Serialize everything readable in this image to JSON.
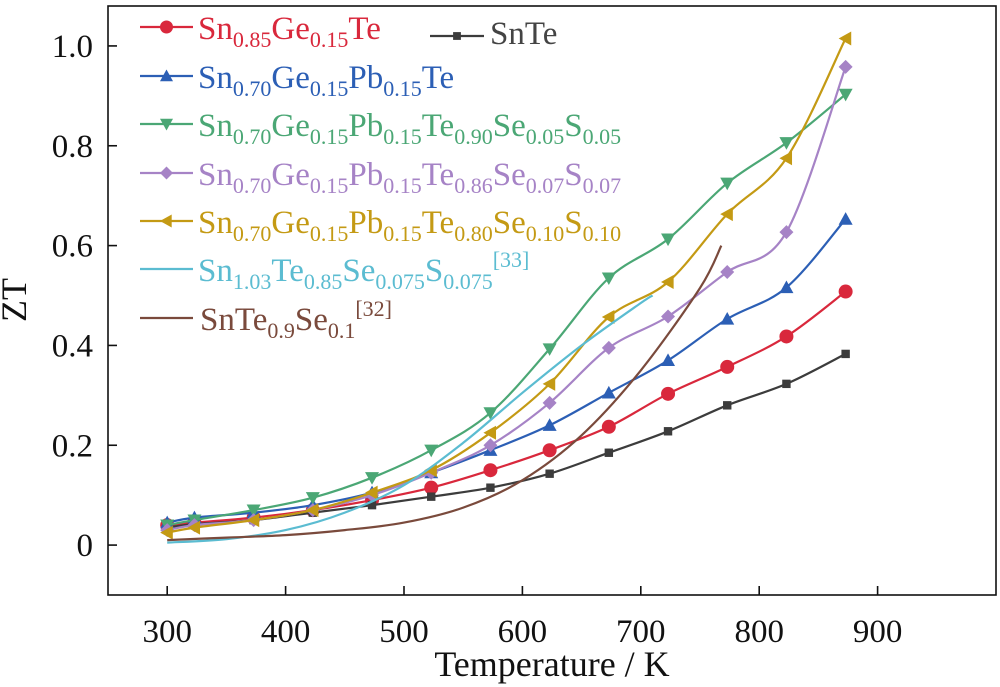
{
  "chart_data": {
    "type": "line",
    "xlabel": "Temperature / K",
    "ylabel": "ZT",
    "xlim": [
      250,
      1000
    ],
    "ylim": [
      -0.1,
      1.08
    ],
    "xticks": [
      300,
      400,
      500,
      600,
      700,
      800,
      900
    ],
    "yticks": [
      0,
      0.2,
      0.4,
      0.6,
      0.8,
      1.0
    ],
    "xtick_labels": [
      "300",
      "400",
      "500",
      "600",
      "700",
      "800",
      "900"
    ],
    "ytick_labels": [
      "0",
      "0.2",
      "0.4",
      "0.6",
      "0.8",
      "1.0"
    ],
    "grid": false,
    "legend_position": "top-left",
    "series": [
      {
        "name": "Sn0.85Ge0.15Te",
        "label_parts": [
          [
            "Sn",
            ""
          ],
          [
            "0.85",
            "sub"
          ],
          [
            "Ge",
            ""
          ],
          [
            "0.15",
            "sub"
          ],
          [
            "Te",
            ""
          ]
        ],
        "color": "#d9283c",
        "marker": "circle",
        "x": [
          300,
          323,
          373,
          423,
          473,
          523,
          573,
          623,
          673,
          723,
          773,
          823,
          873
        ],
        "y": [
          0.04,
          0.045,
          0.055,
          0.07,
          0.09,
          0.115,
          0.15,
          0.19,
          0.237,
          0.303,
          0.357,
          0.418,
          0.508
        ]
      },
      {
        "name": "SnTe",
        "label_parts": [
          [
            "SnTe",
            ""
          ]
        ],
        "color": "#3c3c3c",
        "marker": "square",
        "x": [
          300,
          323,
          373,
          423,
          473,
          523,
          573,
          623,
          673,
          723,
          773,
          823,
          873
        ],
        "y": [
          0.035,
          0.042,
          0.05,
          0.065,
          0.08,
          0.097,
          0.115,
          0.143,
          0.185,
          0.228,
          0.28,
          0.323,
          0.383
        ]
      },
      {
        "name": "Sn0.70Ge0.15Pb0.15Te",
        "label_parts": [
          [
            "Sn",
            ""
          ],
          [
            "0.70",
            "sub"
          ],
          [
            "Ge",
            ""
          ],
          [
            "0.15",
            "sub"
          ],
          [
            "Pb",
            ""
          ],
          [
            "0.15",
            "sub"
          ],
          [
            "Te",
            ""
          ]
        ],
        "color": "#2c5fb5",
        "marker": "triangle-up",
        "x": [
          300,
          323,
          373,
          423,
          473,
          523,
          573,
          623,
          673,
          723,
          773,
          823,
          873
        ],
        "y": [
          0.045,
          0.055,
          0.065,
          0.08,
          0.105,
          0.145,
          0.19,
          0.24,
          0.305,
          0.37,
          0.453,
          0.516,
          0.653
        ]
      },
      {
        "name": "Sn0.70Ge0.15Pb0.15Te0.90Se0.05S0.05",
        "label_parts": [
          [
            "Sn",
            ""
          ],
          [
            "0.70",
            "sub"
          ],
          [
            "Ge",
            ""
          ],
          [
            "0.15",
            "sub"
          ],
          [
            "Pb",
            ""
          ],
          [
            "0.15",
            "sub"
          ],
          [
            "Te",
            ""
          ],
          [
            "0.90",
            "sub"
          ],
          [
            "Se",
            ""
          ],
          [
            "0.05",
            "sub"
          ],
          [
            "S",
            ""
          ],
          [
            "0.05",
            "sub"
          ]
        ],
        "color": "#4ba775",
        "marker": "triangle-down",
        "x": [
          300,
          323,
          373,
          423,
          473,
          523,
          573,
          623,
          673,
          723,
          773,
          823,
          873
        ],
        "y": [
          0.04,
          0.05,
          0.07,
          0.095,
          0.135,
          0.19,
          0.265,
          0.393,
          0.535,
          0.613,
          0.725,
          0.806,
          0.903
        ]
      },
      {
        "name": "Sn0.70Ge0.15Pb0.15Te0.86Se0.07S0.07",
        "label_parts": [
          [
            "Sn",
            ""
          ],
          [
            "0.70",
            "sub"
          ],
          [
            "Ge",
            ""
          ],
          [
            "0.15",
            "sub"
          ],
          [
            "Pb",
            ""
          ],
          [
            "0.15",
            "sub"
          ],
          [
            "Te",
            ""
          ],
          [
            "0.86",
            "sub"
          ],
          [
            "Se",
            ""
          ],
          [
            "0.07",
            "sub"
          ],
          [
            "S",
            ""
          ],
          [
            "0.07",
            "sub"
          ]
        ],
        "color": "#a683c6",
        "marker": "diamond",
        "x": [
          300,
          323,
          373,
          423,
          473,
          523,
          573,
          623,
          673,
          723,
          773,
          823,
          873
        ],
        "y": [
          0.03,
          0.04,
          0.05,
          0.07,
          0.1,
          0.145,
          0.2,
          0.285,
          0.395,
          0.458,
          0.547,
          0.627,
          0.958
        ]
      },
      {
        "name": "Sn0.70Ge0.15Pb0.15Te0.80Se0.10S0.10",
        "label_parts": [
          [
            "Sn",
            ""
          ],
          [
            "0.70",
            "sub"
          ],
          [
            "Ge",
            ""
          ],
          [
            "0.15",
            "sub"
          ],
          [
            "Pb",
            ""
          ],
          [
            "0.15",
            "sub"
          ],
          [
            "Te",
            ""
          ],
          [
            "0.80",
            "sub"
          ],
          [
            "Se",
            ""
          ],
          [
            "0.10",
            "sub"
          ],
          [
            "S",
            ""
          ],
          [
            "0.10",
            "sub"
          ]
        ],
        "color": "#c49a14",
        "marker": "triangle-left",
        "x": [
          300,
          323,
          373,
          423,
          473,
          523,
          573,
          623,
          673,
          723,
          773,
          823,
          873
        ],
        "y": [
          0.025,
          0.035,
          0.05,
          0.07,
          0.105,
          0.15,
          0.225,
          0.323,
          0.457,
          0.527,
          0.663,
          0.775,
          1.015
        ]
      },
      {
        "name": "Sn1.03Te0.85Se0.075S0.075[33]",
        "label_parts": [
          [
            "Sn",
            ""
          ],
          [
            "1.03",
            "sub"
          ],
          [
            "Te",
            ""
          ],
          [
            "0.85",
            "sub"
          ],
          [
            "Se",
            ""
          ],
          [
            "0.075",
            "sub"
          ],
          [
            "S",
            ""
          ],
          [
            "0.075",
            "sub"
          ],
          [
            "[33]",
            "sup"
          ]
        ],
        "color": "#5bbcd1",
        "marker": "none",
        "x": [
          300,
          350,
          400,
          450,
          500,
          550,
          600,
          650,
          700,
          710
        ],
        "y": [
          0.005,
          0.012,
          0.03,
          0.065,
          0.12,
          0.205,
          0.305,
          0.4,
          0.485,
          0.5
        ]
      },
      {
        "name": "SnTe0.9Se0.1[32]",
        "label_parts": [
          [
            "SnTe",
            ""
          ],
          [
            "0.9",
            "sub"
          ],
          [
            "Se",
            ""
          ],
          [
            "0.1",
            "sub"
          ],
          [
            "[32]",
            "sup"
          ]
        ],
        "color": "#7a4a3c",
        "marker": "none",
        "x": [
          300,
          350,
          400,
          450,
          500,
          550,
          600,
          650,
          700,
          750,
          768
        ],
        "y": [
          0.01,
          0.015,
          0.02,
          0.03,
          0.045,
          0.075,
          0.13,
          0.22,
          0.35,
          0.515,
          0.6
        ]
      }
    ]
  }
}
